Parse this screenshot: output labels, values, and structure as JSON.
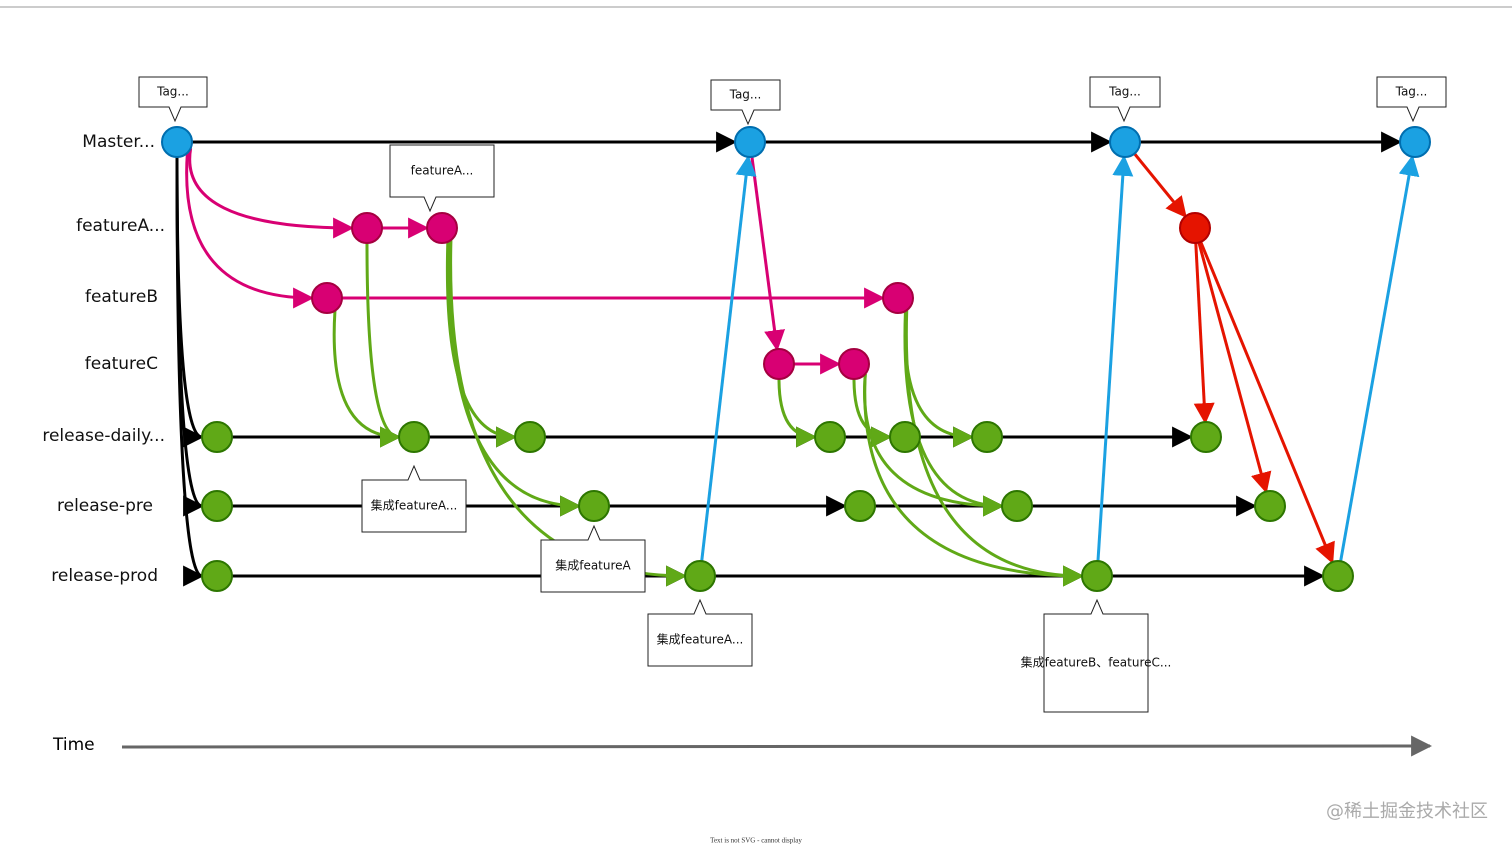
{
  "lanes": [
    "Master...",
    "featureA...",
    "featureB",
    "featureC",
    "release-daily...",
    "release-pre",
    "release-prod"
  ],
  "callouts": [
    "Tag...",
    "Tag...",
    "Tag...",
    "Tag...",
    "featureA...",
    "集成featureA...",
    "集成featureA",
    "集成featureA...",
    "集成featureB、featureC..."
  ],
  "axis": {
    "label": "Time"
  },
  "watermark": "@稀土掘金技术社区",
  "footer": "Text is not SVG - cannot display"
}
